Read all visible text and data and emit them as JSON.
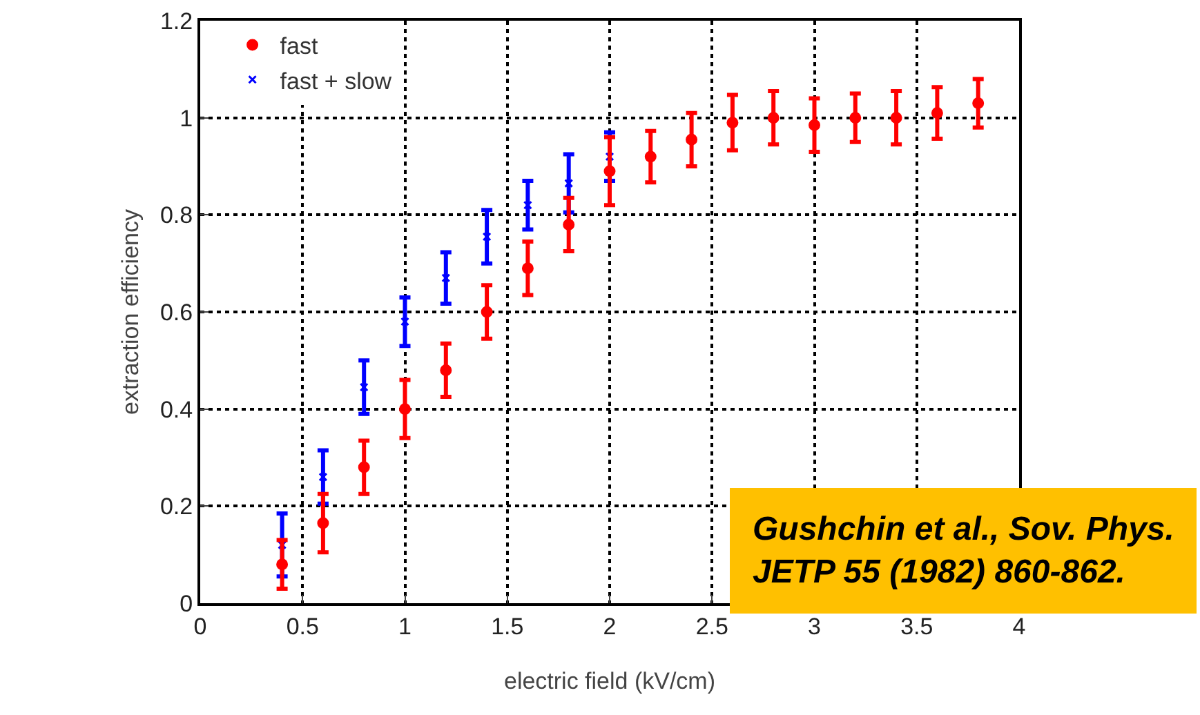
{
  "chart_data": {
    "type": "scatter",
    "xlabel": "electric field (kV/cm)",
    "ylabel": "extraction efficiency",
    "xlim": [
      0,
      4
    ],
    "xticks": [
      0,
      0.5,
      1,
      1.5,
      2,
      2.5,
      3,
      3.5,
      4
    ],
    "ylim": [
      0,
      1.2
    ],
    "yticks": [
      0,
      0.2,
      0.4,
      0.6,
      0.8,
      1,
      1.2
    ],
    "grid": true,
    "legend": "top left",
    "series": [
      {
        "name": "fast",
        "color": "#ff0000",
        "marker": "circle",
        "x": [
          0.4,
          0.6,
          0.8,
          1.0,
          1.2,
          1.4,
          1.6,
          1.8,
          2.0,
          2.2,
          2.4,
          2.6,
          2.8,
          3.0,
          3.2,
          3.4,
          3.6,
          3.8
        ],
        "values": [
          0.08,
          0.165,
          0.28,
          0.4,
          0.48,
          0.6,
          0.69,
          0.78,
          0.89,
          0.92,
          0.955,
          0.99,
          1.0,
          0.985,
          1.0,
          1.0,
          1.01,
          1.03
        ],
        "errors": [
          0.05,
          0.06,
          0.055,
          0.06,
          0.055,
          0.055,
          0.055,
          0.055,
          0.07,
          0.053,
          0.055,
          0.057,
          0.055,
          0.055,
          0.05,
          0.055,
          0.053,
          0.05
        ]
      },
      {
        "name": "fast + slow",
        "color": "#0000ff",
        "marker": "cross",
        "x": [
          0.4,
          0.6,
          0.8,
          1.0,
          1.2,
          1.4,
          1.6,
          1.8,
          2.0
        ],
        "values": [
          0.12,
          0.26,
          0.445,
          0.58,
          0.67,
          0.755,
          0.82,
          0.865,
          0.92
        ],
        "errors": [
          0.065,
          0.055,
          0.055,
          0.05,
          0.053,
          0.055,
          0.05,
          0.06,
          0.05
        ]
      }
    ],
    "annotations": [
      "Gushchin et al., Sov. Phys.\nJETP 55 (1982) 860-862."
    ]
  }
}
